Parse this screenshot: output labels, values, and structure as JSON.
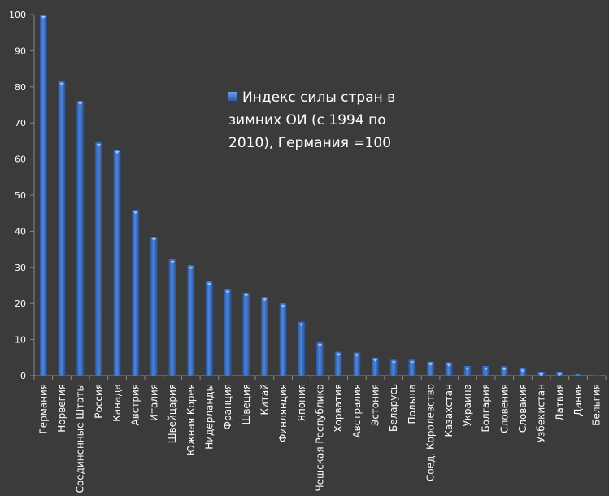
{
  "chart_data": {
    "type": "bar",
    "categories": [
      "Германия",
      "Норвегия",
      "Соединенные Штаты",
      "Россия",
      "Канада",
      "Австрия",
      "Италия",
      "Швейцария",
      "Южная Корея",
      "Нидерланды",
      "Франция",
      "Швеция",
      "Китай",
      "Финляндия",
      "Япония",
      "Чешская Республика",
      "Хорватия",
      "Австралия",
      "Эстония",
      "Беларусь",
      "Польша",
      "Соед. Королевство",
      "Казахстан",
      "Украина",
      "Болгария",
      "Словения",
      "Словакия",
      "Узбекистан",
      "Латвия",
      "Дания",
      "Бельгия"
    ],
    "series": [
      {
        "name": "Индекс силы стран в зимних ОИ (с 1994 по 2010), Германия =100",
        "values": [
          100,
          81.5,
          76.1,
          64.6,
          62.6,
          45.9,
          38.5,
          32.2,
          30.6,
          26.1,
          23.9,
          23.0,
          21.8,
          20.0,
          14.9,
          9.2,
          6.6,
          6.4,
          5.0,
          4.4,
          4.4,
          3.9,
          3.7,
          2.7,
          2.7,
          2.6,
          2.1,
          1.1,
          1.1,
          0.45,
          0.1
        ]
      }
    ],
    "ylim": [
      0,
      100
    ],
    "yticks": [
      0,
      10,
      20,
      30,
      40,
      50,
      60,
      70,
      80,
      90,
      100
    ],
    "grid": false,
    "legend_position": "center",
    "colors": {
      "background": "#3b3b3b",
      "bar": "#3a6dbf",
      "axis": "#8a8a8a",
      "text": "#ffffff"
    }
  }
}
